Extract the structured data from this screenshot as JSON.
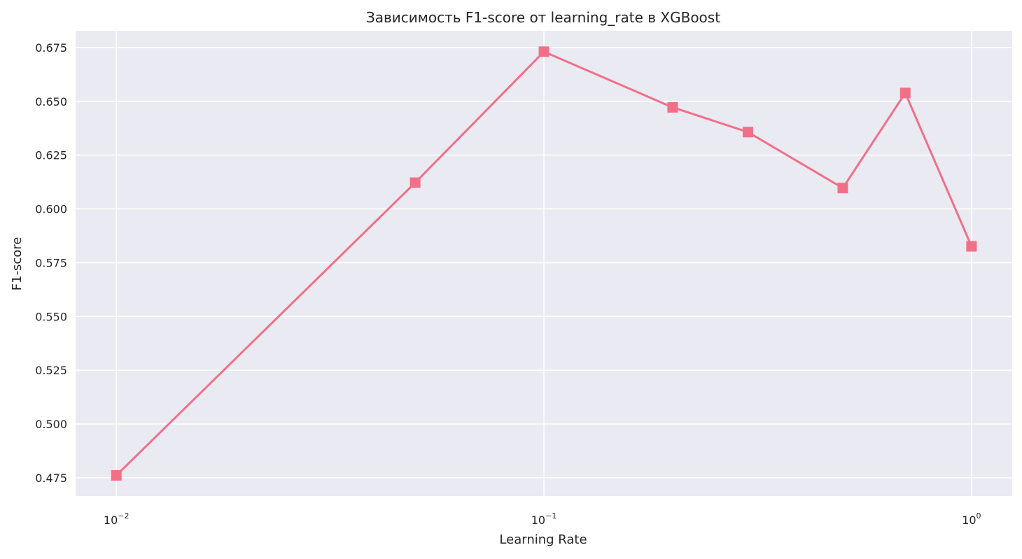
{
  "chart_data": {
    "type": "line",
    "title": "Зависимость F1-score от learning_rate в XGBoost",
    "xlabel": "Learning Rate",
    "ylabel": "F1-score",
    "xscale": "log",
    "x": [
      0.01,
      0.05,
      0.1,
      0.2,
      0.3,
      0.5,
      0.7,
      1.0
    ],
    "series": [
      {
        "values": [
          0.4761,
          0.6122,
          0.6731,
          0.6472,
          0.6357,
          0.6097,
          0.6539,
          0.5826
        ]
      }
    ],
    "xlim": [
      0.00803,
      1.245
    ],
    "ylim": [
      0.4665,
      0.6828
    ],
    "yticks": [
      "0.475",
      "0.500",
      "0.525",
      "0.550",
      "0.575",
      "0.600",
      "0.625",
      "0.650",
      "0.675"
    ],
    "xticks": [
      {
        "value": 0.01,
        "base": "10",
        "exponent": "−2"
      },
      {
        "value": 0.1,
        "base": "10",
        "exponent": "−1"
      },
      {
        "value": 1.0,
        "base": "10",
        "exponent": "0"
      }
    ],
    "grid": true,
    "line_color": "#f17088",
    "marker": "square",
    "plot_background": "#eaeaf2",
    "grid_color": "#ffffff"
  }
}
